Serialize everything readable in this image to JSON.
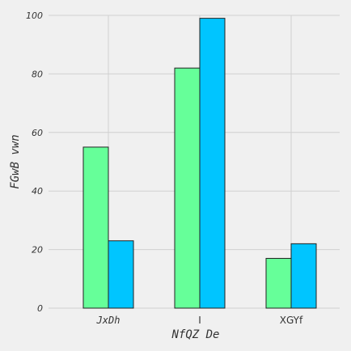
{
  "chart_data": {
    "type": "bar",
    "categories": [
      "JxDh",
      "I",
      "XGYf"
    ],
    "series": [
      {
        "values": [
          55,
          82,
          17
        ],
        "color": "#66ff99"
      },
      {
        "values": [
          23,
          99,
          22
        ],
        "color": "#00c5ff"
      }
    ],
    "xlabel": "NfQZ De",
    "ylabel": "FGwB vwn",
    "ylim": [
      0,
      100
    ],
    "yticks": [
      0,
      20,
      40,
      60,
      80,
      100
    ],
    "grid": true,
    "category_styles": [
      "mono",
      "sans",
      "sans"
    ]
  }
}
